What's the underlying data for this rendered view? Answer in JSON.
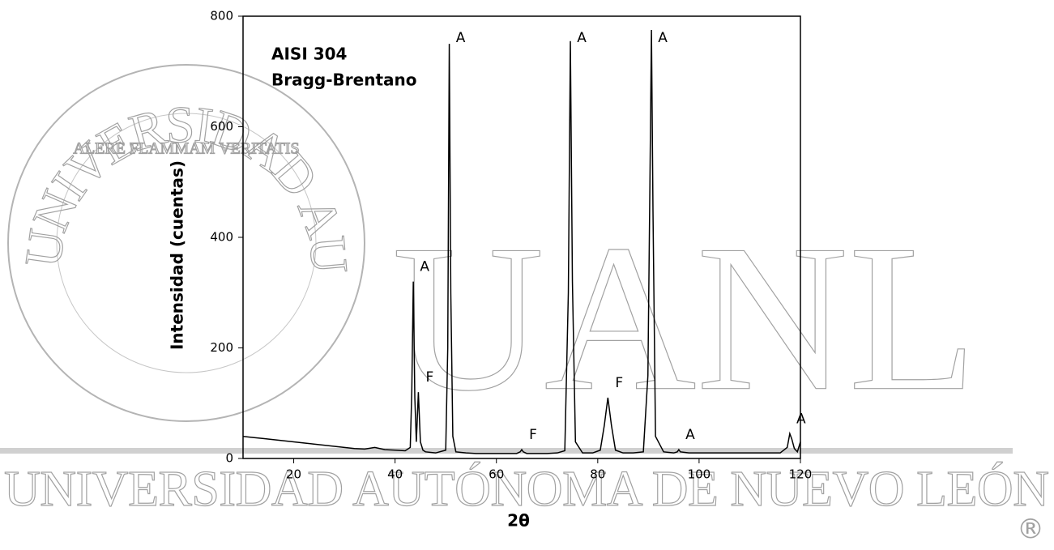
{
  "chart_data": {
    "type": "line",
    "labels": {
      "title": "AISI 304",
      "subtitle": "Bragg-Brentano"
    },
    "xlabel": "2θ",
    "ylabel": "Intensidad (cuentas)",
    "xlim": [
      10,
      120
    ],
    "ylim": [
      0,
      800
    ],
    "xticks": [
      20,
      40,
      60,
      80,
      100,
      120
    ],
    "yticks": [
      0,
      200,
      400,
      600,
      800
    ],
    "color": "#000000",
    "x": [
      10,
      12,
      14,
      16,
      18,
      20,
      22,
      24,
      26,
      28,
      30,
      32,
      34,
      36,
      38,
      40,
      42,
      43,
      43.3,
      43.6,
      43.9,
      44.2,
      44.6,
      45,
      45.5,
      46,
      48,
      50,
      50.4,
      50.7,
      51,
      51.4,
      52,
      54,
      56,
      58,
      60,
      62,
      64,
      64.7,
      65,
      65.3,
      66,
      68,
      70,
      72,
      73.5,
      74.2,
      74.6,
      75,
      75.6,
      77,
      79,
      80.5,
      81.3,
      82,
      82.7,
      83.5,
      85,
      87,
      89,
      89.9,
      90.3,
      90.6,
      90.9,
      91.4,
      93,
      95,
      95.7,
      96,
      96.3,
      98,
      100,
      102,
      104,
      106,
      108,
      110,
      112,
      114,
      116,
      117.4,
      117.9,
      118.3,
      118.8,
      119.4,
      120
    ],
    "values": [
      40,
      38,
      36,
      34,
      32,
      30,
      28,
      26,
      24,
      22,
      20,
      18,
      17,
      20,
      16,
      15,
      14,
      20,
      120,
      320,
      110,
      30,
      120,
      30,
      15,
      12,
      10,
      15,
      200,
      750,
      300,
      40,
      12,
      10,
      9,
      9,
      9,
      9,
      9,
      12,
      16,
      12,
      9,
      9,
      9,
      10,
      14,
      300,
      755,
      320,
      30,
      10,
      10,
      15,
      60,
      110,
      60,
      15,
      10,
      10,
      12,
      150,
      500,
      775,
      450,
      40,
      12,
      10,
      12,
      16,
      12,
      10,
      10,
      10,
      10,
      10,
      10,
      10,
      10,
      10,
      10,
      20,
      45,
      35,
      18,
      12,
      30
    ],
    "annotations": [
      {
        "text": "A",
        "x": 43.6
      },
      {
        "text": "F",
        "x": 44.6
      },
      {
        "text": "A",
        "x": 50.7
      },
      {
        "text": "F",
        "x": 65
      },
      {
        "text": "A",
        "x": 74.6
      },
      {
        "text": "F",
        "x": 82
      },
      {
        "text": "A",
        "x": 90.6
      },
      {
        "text": "A",
        "x": 96
      },
      {
        "text": "A",
        "x": 117.9
      }
    ]
  },
  "watermark": {
    "acronym": "UANL",
    "name": "UNIVERSIDAD AUTÓNOMA DE NUEVO LEÓN",
    "seal": "UNIVERSIDAD AUTONOMA DE NUEVO LEON",
    "motto": "ALERE FLAMMAM VERITATIS",
    "registered": "®"
  }
}
